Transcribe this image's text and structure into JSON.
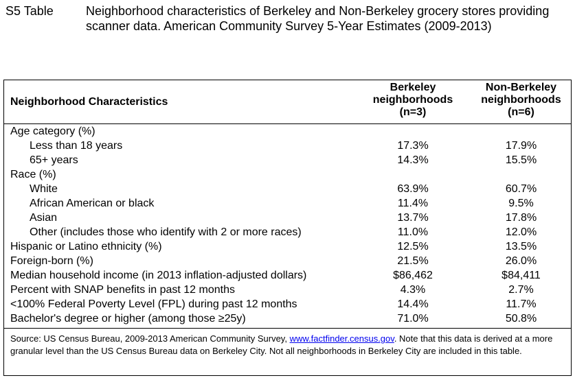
{
  "caption": {
    "label": "S5 Table",
    "title": "Neighborhood characteristics of Berkeley and Non-Berkeley grocery stores providing scanner data. American Community Survey 5-Year Estimates (2009-2013)"
  },
  "table": {
    "headers": {
      "characteristics": "Neighborhood Characteristics",
      "berkeley": [
        "Berkeley",
        "neighborhoods",
        "(n=3)"
      ],
      "non_berkeley": [
        "Non-Berkeley",
        "neighborhoods",
        "(n=6)"
      ]
    },
    "rows": [
      {
        "label": "Age category (%)",
        "indent": false,
        "berkeley": "",
        "non_berkeley": ""
      },
      {
        "label": "Less than 18 years",
        "indent": true,
        "berkeley": "17.3%",
        "non_berkeley": "17.9%"
      },
      {
        "label": "65+ years",
        "indent": true,
        "berkeley": "14.3%",
        "non_berkeley": "15.5%"
      },
      {
        "label": "Race (%)",
        "indent": false,
        "berkeley": "",
        "non_berkeley": ""
      },
      {
        "label": "White",
        "indent": true,
        "berkeley": "63.9%",
        "non_berkeley": "60.7%"
      },
      {
        "label": "African American or black",
        "indent": true,
        "berkeley": "11.4%",
        "non_berkeley": "9.5%"
      },
      {
        "label": "Asian",
        "indent": true,
        "berkeley": "13.7%",
        "non_berkeley": "17.8%"
      },
      {
        "label": "Other (includes those who identify with 2 or more races)",
        "indent": true,
        "berkeley": "11.0%",
        "non_berkeley": "12.0%"
      },
      {
        "label": "Hispanic or Latino ethnicity (%)",
        "indent": false,
        "berkeley": "12.5%",
        "non_berkeley": "13.5%"
      },
      {
        "label": "Foreign-born (%)",
        "indent": false,
        "berkeley": "21.5%",
        "non_berkeley": "26.0%"
      },
      {
        "label": "Median household income (in 2013 inflation-adjusted dollars)",
        "indent": false,
        "berkeley": "$86,462",
        "non_berkeley": "$84,411"
      },
      {
        "label": "Percent with SNAP benefits in past 12 months",
        "indent": false,
        "berkeley": "4.3%",
        "non_berkeley": "2.7%"
      },
      {
        "label": "<100% Federal Poverty Level (FPL) during past 12 months",
        "indent": false,
        "berkeley": "14.4%",
        "non_berkeley": "11.7%"
      },
      {
        "label": "Bachelor's degree or higher (among those ≥25y)",
        "indent": false,
        "berkeley": "71.0%",
        "non_berkeley": "50.8%"
      }
    ]
  },
  "source": {
    "prefix": "Source: US Census Bureau, 2009-2013 American Community Survey, ",
    "link_text": "www.factfinder.census.gov",
    "suffix": ". Note that this data is derived at a more granular level than the US Census Bureau data on Berkeley City. Not all neighborhoods in Berkeley City are included in this table."
  }
}
